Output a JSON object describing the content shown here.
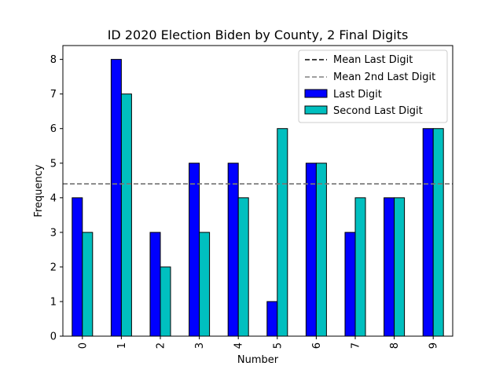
{
  "chart_data": {
    "type": "bar",
    "title": "ID 2020 Election Biden by County, 2 Final Digits",
    "xlabel": "Number",
    "ylabel": "Frequency",
    "categories": [
      "0",
      "1",
      "2",
      "3",
      "4",
      "5",
      "6",
      "7",
      "8",
      "9"
    ],
    "ylim": [
      0,
      8.4
    ],
    "yticks": [
      0,
      1,
      2,
      3,
      4,
      5,
      6,
      7,
      8
    ],
    "series": [
      {
        "name": "Last Digit",
        "color": "#0000ff",
        "values": [
          4,
          8,
          3,
          5,
          5,
          1,
          5,
          3,
          4,
          6
        ]
      },
      {
        "name": "Second Last Digit",
        "color": "#00bfbf",
        "values": [
          3,
          7,
          2,
          3,
          4,
          6,
          5,
          4,
          4,
          6
        ]
      }
    ],
    "reference_lines": [
      {
        "name": "Mean Last Digit",
        "value": 4.4,
        "color": "#000000",
        "style": "dashed"
      },
      {
        "name": "Mean 2nd Last Digit",
        "value": 4.4,
        "color": "#808080",
        "style": "dashed"
      }
    ],
    "legend_position": "top-right",
    "grid": false
  }
}
